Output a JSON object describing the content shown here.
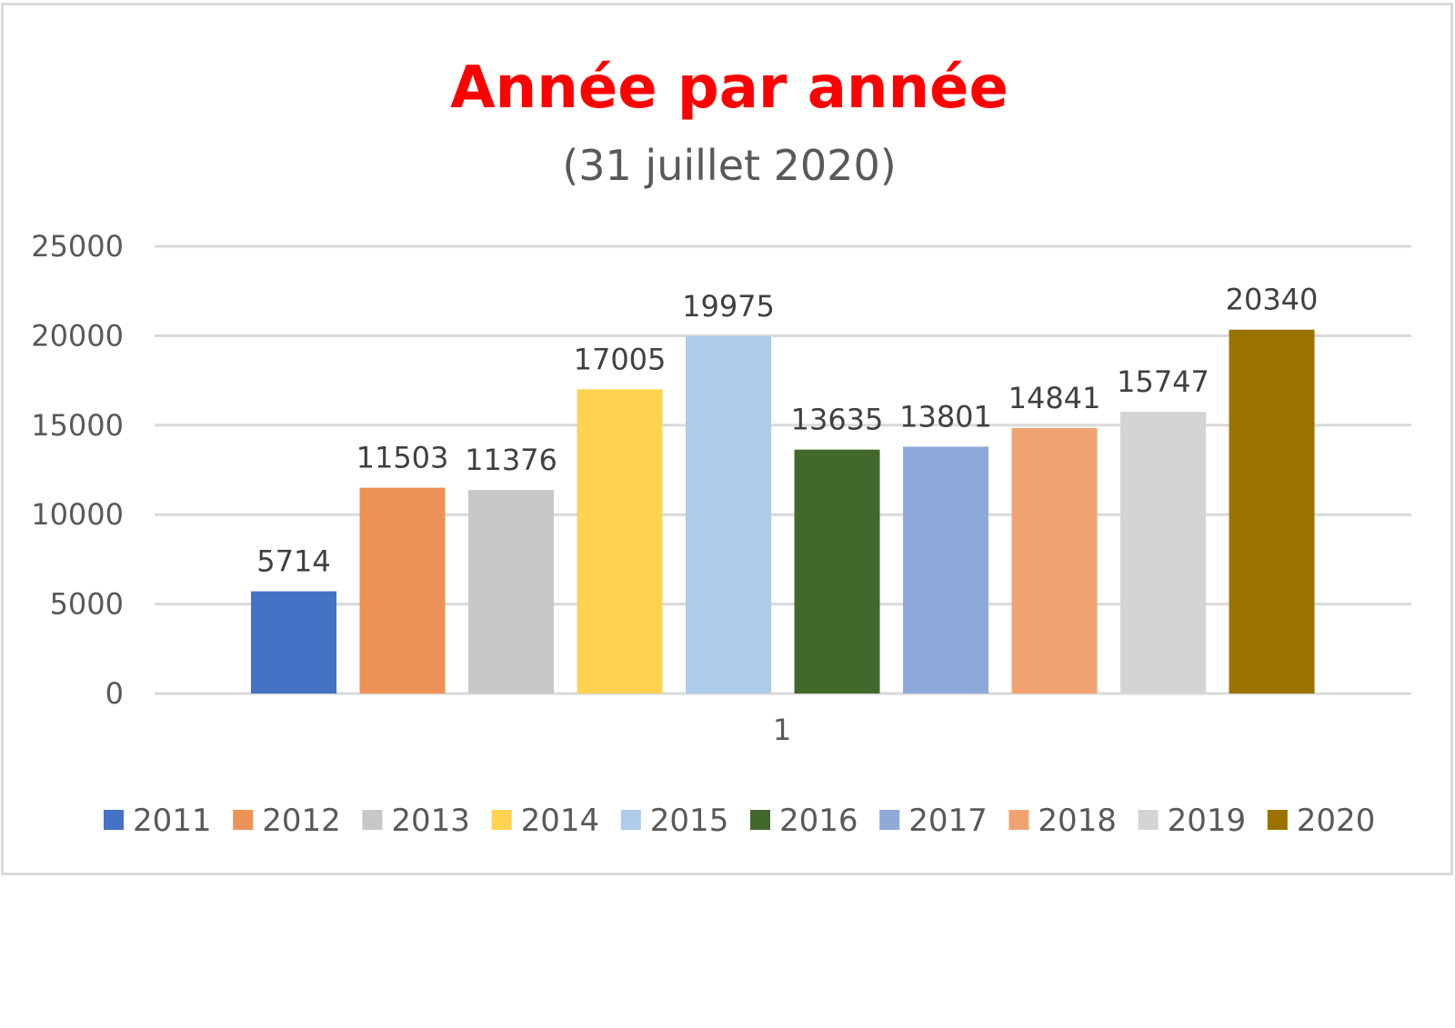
{
  "chart_data": {
    "type": "bar",
    "title": "Année par année",
    "subtitle": "(31 juillet 2020)",
    "title_color": "#ff0000",
    "categories": [
      "1"
    ],
    "ylim": [
      0,
      25000
    ],
    "yticks": [
      "0",
      "5000",
      "10000",
      "15000",
      "20000",
      "25000"
    ],
    "grid": true,
    "legend_position": "bottom",
    "series": [
      {
        "name": "2011",
        "value": 5714,
        "label": "5714",
        "color": "#4472c4"
      },
      {
        "name": "2012",
        "value": 11503,
        "label": "11503",
        "color": "#ed9256"
      },
      {
        "name": "2013",
        "value": 11376,
        "label": "11376",
        "color": "#c8c8c8"
      },
      {
        "name": "2014",
        "value": 17005,
        "label": "17005",
        "color": "#ffd34f"
      },
      {
        "name": "2015",
        "value": 19975,
        "label": "19975",
        "color": "#adcbea"
      },
      {
        "name": "2016",
        "value": 13635,
        "label": "13635",
        "color": "#43682b"
      },
      {
        "name": "2017",
        "value": 13801,
        "label": "13801",
        "color": "#8eaadb"
      },
      {
        "name": "2018",
        "value": 14841,
        "label": "14841",
        "color": "#f0a370"
      },
      {
        "name": "2019",
        "value": 15747,
        "label": "15747",
        "color": "#d4d4d4"
      },
      {
        "name": "2020",
        "value": 20340,
        "label": "20340",
        "color": "#9b7200"
      }
    ]
  }
}
